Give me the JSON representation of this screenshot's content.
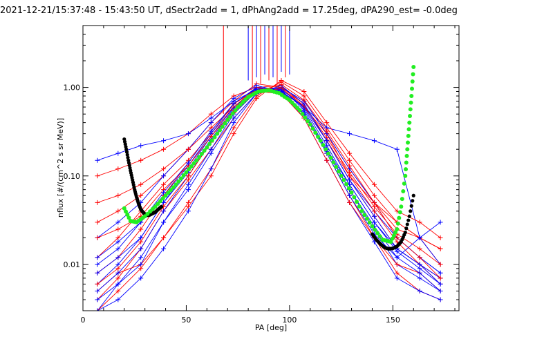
{
  "chart_data": {
    "type": "line",
    "title": "2021-12-21/15:37:48 - 15:43:50 UT, dSectr2add = 1, dPhAng2add = 17.25deg, dPA290_est=  -0.0deg",
    "xlabel": "PA [deg]",
    "ylabel": "nflux [#/(cm^2 s sr MeV)]",
    "xlim": [
      0,
      182
    ],
    "ylim": [
      0.003,
      5.0
    ],
    "yscale": "log",
    "grid": false,
    "xticks": [
      {
        "value": 0,
        "label": "0"
      },
      {
        "value": 50,
        "label": "50"
      },
      {
        "value": 100,
        "label": "100"
      },
      {
        "value": 150,
        "label": "150"
      }
    ],
    "yticks": [
      {
        "value": 0.01,
        "label": "0.01"
      },
      {
        "value": 0.1,
        "label": "0.10"
      },
      {
        "value": 1.0,
        "label": "1.00"
      }
    ],
    "colors": {
      "red": "#ff0000",
      "blue": "#0000ff",
      "green": "#22ee22",
      "black": "#000000"
    },
    "pa_bins": [
      7,
      17,
      28,
      39,
      51,
      62,
      73,
      84,
      96,
      107,
      118,
      129,
      141,
      152,
      163,
      173
    ],
    "series": [
      {
        "color": "red",
        "values": [
          0.004,
          0.007,
          0.015,
          0.04,
          0.09,
          0.2,
          0.45,
          0.85,
          0.95,
          0.5,
          0.18,
          0.06,
          0.02,
          0.008,
          0.005,
          0.004
        ]
      },
      {
        "color": "blue",
        "values": [
          0.003,
          0.006,
          0.012,
          0.03,
          0.08,
          0.2,
          0.5,
          0.9,
          0.9,
          0.45,
          0.15,
          0.05,
          0.018,
          0.007,
          0.005,
          0.004
        ]
      },
      {
        "color": "red",
        "values": [
          0.012,
          0.02,
          0.04,
          0.08,
          0.15,
          0.3,
          0.6,
          1.0,
          1.05,
          0.6,
          0.25,
          0.09,
          0.035,
          0.015,
          0.01,
          0.007
        ]
      },
      {
        "color": "blue",
        "values": [
          0.006,
          0.01,
          0.02,
          0.05,
          0.12,
          0.28,
          0.6,
          0.95,
          1.0,
          0.55,
          0.2,
          0.07,
          0.025,
          0.01,
          0.007,
          0.005
        ]
      },
      {
        "color": "red",
        "values": [
          0.03,
          0.04,
          0.06,
          0.1,
          0.2,
          0.4,
          0.7,
          1.1,
          1.0,
          0.7,
          0.3,
          0.12,
          0.05,
          0.025,
          0.02,
          0.015
        ]
      },
      {
        "color": "blue",
        "values": [
          0.01,
          0.015,
          0.03,
          0.06,
          0.13,
          0.3,
          0.65,
          1.0,
          0.95,
          0.6,
          0.25,
          0.09,
          0.04,
          0.02,
          0.012,
          0.008
        ]
      },
      {
        "color": "red",
        "values": [
          0.1,
          0.12,
          0.15,
          0.2,
          0.3,
          0.5,
          0.8,
          1.0,
          0.9,
          0.6,
          0.3,
          0.1,
          0.05,
          0.03,
          0.02,
          0.015
        ]
      },
      {
        "color": "blue",
        "values": [
          0.02,
          0.03,
          0.05,
          0.1,
          0.2,
          0.4,
          0.75,
          1.05,
          0.9,
          0.5,
          0.2,
          0.08,
          0.03,
          0.015,
          0.01,
          0.007
        ]
      },
      {
        "color": "red",
        "values": [
          0.005,
          0.008,
          0.01,
          0.02,
          0.05,
          0.12,
          0.35,
          0.8,
          1.15,
          0.8,
          0.35,
          0.15,
          0.06,
          0.03,
          0.02,
          0.01
        ]
      },
      {
        "color": "blue",
        "values": [
          0.004,
          0.006,
          0.01,
          0.03,
          0.07,
          0.18,
          0.45,
          0.85,
          1.0,
          0.7,
          0.3,
          0.12,
          0.05,
          0.02,
          0.012,
          0.008
        ]
      },
      {
        "color": "red",
        "values": [
          0.008,
          0.012,
          0.025,
          0.06,
          0.14,
          0.32,
          0.65,
          0.95,
          1.0,
          0.65,
          0.25,
          0.1,
          0.04,
          0.018,
          0.01,
          0.006
        ]
      },
      {
        "color": "blue",
        "values": [
          0.15,
          0.18,
          0.22,
          0.25,
          0.3,
          0.45,
          0.7,
          0.95,
          0.9,
          0.6,
          0.35,
          0.3,
          0.25,
          0.2,
          0.02,
          0.01
        ]
      },
      {
        "color": "red",
        "values": [
          0.05,
          0.06,
          0.08,
          0.12,
          0.2,
          0.35,
          0.6,
          0.9,
          0.85,
          0.45,
          0.15,
          0.05,
          0.02,
          0.01,
          0.008,
          0.005
        ]
      },
      {
        "color": "blue",
        "values": [
          0.005,
          0.008,
          0.015,
          0.04,
          0.1,
          0.25,
          0.55,
          0.9,
          0.95,
          0.5,
          0.18,
          0.06,
          0.022,
          0.012,
          0.02,
          0.03
        ]
      },
      {
        "color": "red",
        "values": [
          0.003,
          0.005,
          0.009,
          0.02,
          0.045,
          0.1,
          0.3,
          0.75,
          1.2,
          0.9,
          0.4,
          0.18,
          0.08,
          0.04,
          0.03,
          0.02
        ]
      },
      {
        "color": "blue",
        "values": [
          0.008,
          0.012,
          0.02,
          0.05,
          0.11,
          0.26,
          0.58,
          0.92,
          0.98,
          0.58,
          0.22,
          0.08,
          0.03,
          0.014,
          0.009,
          0.006
        ]
      },
      {
        "color": "red",
        "values": [
          0.02,
          0.025,
          0.035,
          0.07,
          0.13,
          0.28,
          0.55,
          0.88,
          0.97,
          0.62,
          0.27,
          0.11,
          0.045,
          0.022,
          0.015,
          0.01
        ]
      },
      {
        "color": "blue",
        "values": [
          0.003,
          0.004,
          0.007,
          0.015,
          0.04,
          0.12,
          0.4,
          0.85,
          1.05,
          0.65,
          0.25,
          0.09,
          0.035,
          0.015,
          0.01,
          0.006
        ]
      },
      {
        "color": "red",
        "values": [
          0.006,
          0.009,
          0.018,
          0.045,
          0.1,
          0.24,
          0.52,
          0.9,
          1.08,
          0.72,
          0.32,
          0.13,
          0.05,
          0.02,
          0.012,
          0.007
        ]
      },
      {
        "color": "blue",
        "values": [
          0.012,
          0.018,
          0.03,
          0.065,
          0.14,
          0.32,
          0.66,
          0.98,
          0.92,
          0.52,
          0.19,
          0.07,
          0.027,
          0.012,
          0.008,
          0.005
        ]
      }
    ],
    "spikes": [
      {
        "color": "red",
        "x": 68,
        "y_low": 0.5
      },
      {
        "color": "blue",
        "x": 80,
        "y_low": 1.2
      },
      {
        "color": "red",
        "x": 82,
        "y_low": 1.0
      },
      {
        "color": "blue",
        "x": 84,
        "y_low": 1.3
      },
      {
        "color": "red",
        "x": 86,
        "y_low": 1.1
      },
      {
        "color": "blue",
        "x": 88,
        "y_low": 1.4
      },
      {
        "color": "red",
        "x": 90,
        "y_low": 1.2
      },
      {
        "color": "blue",
        "x": 92,
        "y_low": 1.3
      },
      {
        "color": "red",
        "x": 94,
        "y_low": 1.1
      },
      {
        "color": "blue",
        "x": 96,
        "y_low": 1.5
      },
      {
        "color": "red",
        "x": 98,
        "y_low": 1.3
      },
      {
        "color": "blue",
        "x": 100,
        "y_low": 1.4
      }
    ],
    "fit_green": {
      "color": "green",
      "x": [
        20,
        23,
        26,
        30,
        35,
        40,
        45,
        50,
        55,
        60,
        65,
        70,
        75,
        80,
        85,
        90,
        95,
        100,
        105,
        110,
        115,
        120,
        125,
        130,
        135,
        140,
        145,
        149,
        152,
        154,
        156,
        157,
        158,
        159,
        160
      ],
      "values": [
        0.043,
        0.031,
        0.03,
        0.035,
        0.045,
        0.06,
        0.08,
        0.11,
        0.15,
        0.21,
        0.3,
        0.43,
        0.6,
        0.78,
        0.9,
        0.93,
        0.86,
        0.72,
        0.55,
        0.38,
        0.25,
        0.16,
        0.1,
        0.065,
        0.04,
        0.027,
        0.019,
        0.018,
        0.025,
        0.045,
        0.1,
        0.2,
        0.4,
        0.8,
        1.7
      ]
    },
    "fit_black": {
      "color": "black",
      "x": [
        20,
        21,
        22,
        23,
        24,
        25,
        26,
        27,
        28,
        29,
        30,
        31,
        32,
        33,
        34,
        35,
        36,
        37,
        38
      ],
      "values": [
        0.26,
        0.2,
        0.15,
        0.115,
        0.09,
        0.07,
        0.057,
        0.048,
        0.042,
        0.039,
        0.037,
        0.036,
        0.036,
        0.037,
        0.038,
        0.039,
        0.041,
        0.043,
        0.045
      ]
    },
    "fit_black_right": {
      "color": "black",
      "x": [
        140,
        142,
        144,
        146,
        148,
        150,
        152,
        154,
        156,
        158,
        160
      ],
      "values": [
        0.022,
        0.019,
        0.017,
        0.0155,
        0.015,
        0.0152,
        0.016,
        0.018,
        0.023,
        0.035,
        0.06
      ]
    }
  }
}
